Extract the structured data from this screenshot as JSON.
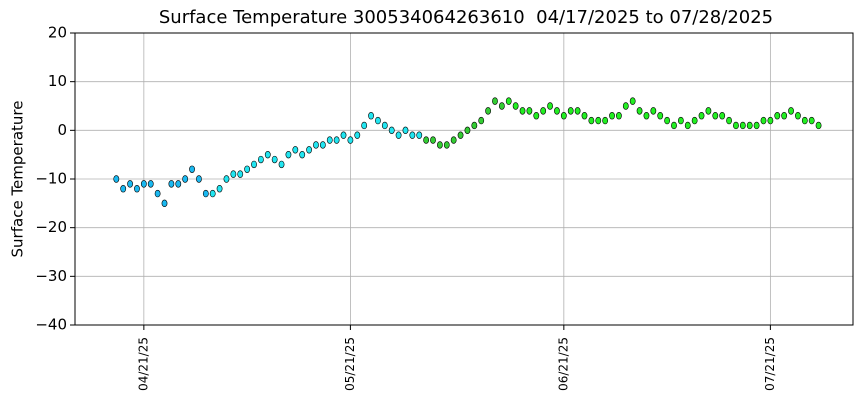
{
  "chart_data": {
    "type": "scatter",
    "title": "Surface Temperature 300534064263610  04/17/2025 to 07/28/2025",
    "y_label": "Surface Temperature",
    "xlim": [
      "04/11/25",
      "08/02/25"
    ],
    "xticks": [
      "04/21/25",
      "05/21/25",
      "06/21/25",
      "07/21/25"
    ],
    "ylim": [
      -40,
      20
    ],
    "yticks": [
      {
        "value": -40,
        "label": "−40"
      },
      {
        "value": -30,
        "label": "−30"
      },
      {
        "value": -20,
        "label": "−20"
      },
      {
        "value": -10,
        "label": "−10"
      },
      0,
      10,
      20
    ],
    "grid": true,
    "series": [
      {
        "color": "#1ab8f0",
        "x": [
          "04/17/25",
          "04/18/25",
          "04/19/25",
          "04/20/25",
          "04/21/25",
          "04/22/25",
          "04/23/25",
          "04/24/25",
          "04/25/25",
          "04/26/25",
          "04/27/25",
          "04/28/25",
          "04/29/25",
          "04/30/25"
        ],
        "values": [
          -10,
          -12,
          -11,
          -12,
          -11,
          -11,
          -13,
          -15,
          -11,
          -11,
          -10,
          -8,
          -10,
          -13
        ]
      },
      {
        "color": "#22e5f0",
        "x": [
          "05/01/25",
          "05/02/25",
          "05/03/25",
          "05/04/25",
          "05/05/25",
          "05/06/25",
          "05/07/25",
          "05/08/25",
          "05/09/25",
          "05/10/25",
          "05/11/25",
          "05/12/25",
          "05/13/25",
          "05/14/25",
          "05/15/25",
          "05/16/25",
          "05/17/25",
          "05/18/25",
          "05/19/25",
          "05/20/25",
          "05/21/25",
          "05/22/25",
          "05/23/25",
          "05/24/25",
          "05/25/25",
          "05/26/25",
          "05/27/25",
          "05/28/25",
          "05/29/25",
          "05/30/25",
          "05/31/25"
        ],
        "values": [
          -13,
          -12,
          -10,
          -9,
          -9,
          -8,
          -7,
          -6,
          -5,
          -6,
          -7,
          -5,
          -4,
          -5,
          -4,
          -3,
          -3,
          -2,
          -2,
          -1,
          -2,
          -1,
          1,
          3,
          2,
          1,
          0,
          -1,
          0,
          -1,
          -1
        ]
      },
      {
        "color": "#33cc33",
        "x": [
          "06/01/25",
          "06/02/25",
          "06/03/25",
          "06/04/25",
          "06/05/25",
          "06/06/25",
          "06/07/25",
          "06/08/25",
          "06/09/25",
          "06/10/25",
          "06/11/25",
          "06/12/25"
        ],
        "values": [
          -2,
          -2,
          -3,
          -3,
          -2,
          -1,
          0,
          1,
          2,
          4,
          6,
          5
        ]
      },
      {
        "color": "#22ee22",
        "x": [
          "06/13/25",
          "06/14/25",
          "06/15/25",
          "06/16/25",
          "06/17/25",
          "06/18/25",
          "06/19/25",
          "06/20/25",
          "06/21/25",
          "06/22/25",
          "06/23/25",
          "06/24/25",
          "06/25/25",
          "06/26/25",
          "06/27/25",
          "06/28/25",
          "06/29/25",
          "06/30/25",
          "07/01/25",
          "07/02/25",
          "07/03/25",
          "07/04/25",
          "07/05/25",
          "07/06/25",
          "07/07/25",
          "07/08/25",
          "07/09/25",
          "07/10/25",
          "07/11/25",
          "07/12/25",
          "07/13/25",
          "07/14/25",
          "07/15/25",
          "07/16/25",
          "07/17/25",
          "07/18/25",
          "07/19/25",
          "07/20/25",
          "07/21/25",
          "07/22/25",
          "07/23/25",
          "07/24/25",
          "07/25/25",
          "07/26/25",
          "07/27/25",
          "07/28/25"
        ],
        "values": [
          6,
          5,
          4,
          4,
          3,
          4,
          5,
          4,
          3,
          4,
          4,
          3,
          2,
          2,
          2,
          3,
          3,
          5,
          6,
          4,
          3,
          4,
          3,
          2,
          1,
          2,
          1,
          2,
          3,
          4,
          3,
          3,
          2,
          1,
          1,
          1,
          1,
          2,
          2,
          3,
          3,
          4,
          3,
          2,
          2,
          1
        ]
      }
    ]
  }
}
